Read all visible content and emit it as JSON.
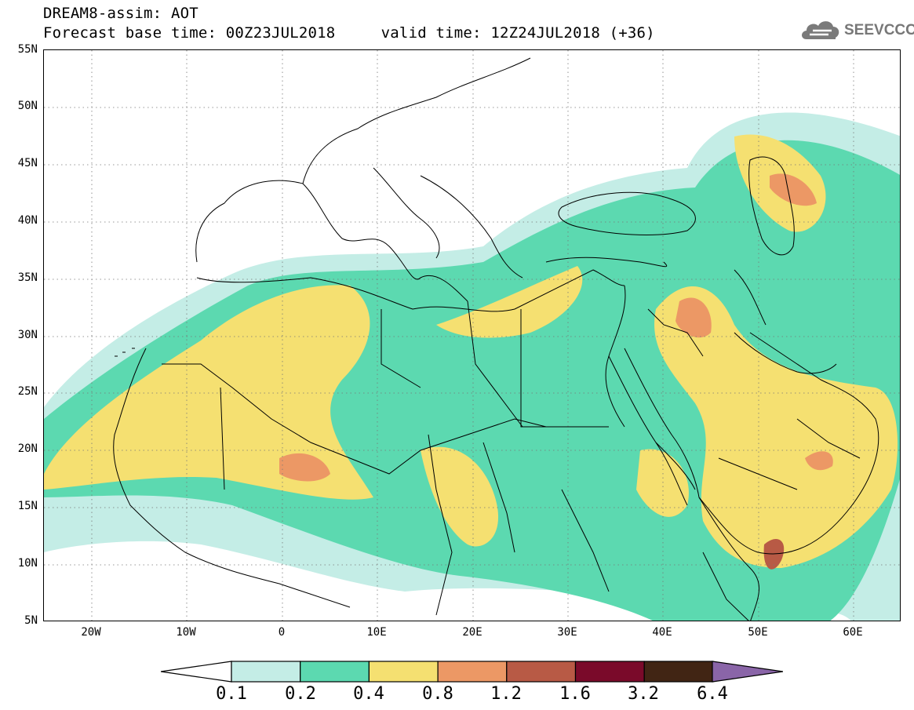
{
  "header": {
    "title": "DREAM8-assim: AOT",
    "forecast_base_label": "Forecast base time: 00Z23JUL2018",
    "valid_time_label": "valid time: 12Z24JUL2018 (+36)"
  },
  "logo": {
    "text": "SEEVCCC",
    "icon": "cloud-icon",
    "color": "#777777"
  },
  "map": {
    "lat_labels": [
      "55N",
      "50N",
      "45N",
      "40N",
      "35N",
      "30N",
      "25N",
      "20N",
      "15N",
      "10N",
      "5N"
    ],
    "lon_labels": [
      "20W",
      "10W",
      "0",
      "10E",
      "20E",
      "30E",
      "40E",
      "50E",
      "60E"
    ],
    "lat_range": [
      5,
      55
    ],
    "lon_range": [
      -25,
      65
    ],
    "grid": true
  },
  "legend": {
    "values": [
      "0.1",
      "0.2",
      "0.4",
      "0.8",
      "1.2",
      "1.6",
      "3.2",
      "6.4"
    ],
    "colors": [
      "#c4ede6",
      "#5cd9b0",
      "#f5e071",
      "#ec9865",
      "#b85a45",
      "#7a0a2a",
      "#412514",
      "#8a65a8"
    ],
    "below_color": "#ffffff"
  }
}
